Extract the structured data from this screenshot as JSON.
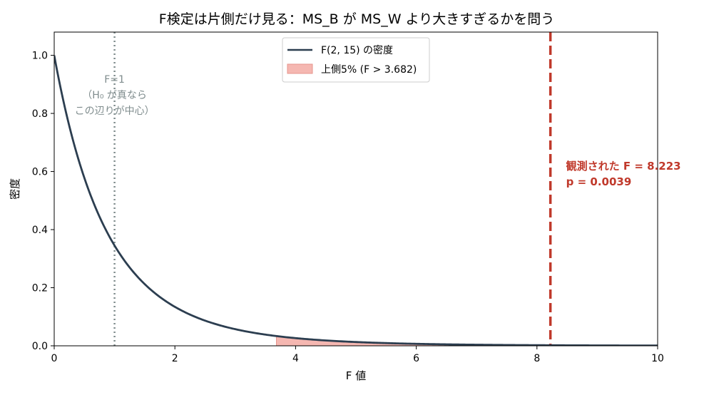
{
  "chart_data": {
    "type": "line",
    "title": "F検定は片側だけ見る：MS_B が MS_W より大きすぎるかを問う",
    "xlabel": "F 値",
    "ylabel": "密度",
    "xlim": [
      0,
      10
    ],
    "ylim": [
      0,
      1.08
    ],
    "x_ticks": [
      0,
      2,
      4,
      6,
      8,
      10
    ],
    "x_tick_labels": [
      "0",
      "2",
      "4",
      "6",
      "8",
      "10"
    ],
    "y_ticks": [
      0.0,
      0.2,
      0.4,
      0.6,
      0.8,
      1.0
    ],
    "y_tick_labels": [
      "0.0",
      "0.2",
      "0.4",
      "0.6",
      "0.8",
      "1.0"
    ],
    "grid": false,
    "legend_position": "top-center",
    "series": [
      {
        "name": "F(2, 15) の密度",
        "color": "#2c3e50",
        "x": [
          0,
          0.25,
          0.5,
          0.75,
          1,
          1.25,
          1.5,
          1.75,
          2,
          2.5,
          3,
          3.5,
          4,
          4.5,
          5,
          6,
          7,
          8,
          9,
          10
        ],
        "y": [
          1.0,
          0.773,
          0.602,
          0.472,
          0.372,
          0.296,
          0.236,
          0.19,
          0.154,
          0.102,
          0.068,
          0.047,
          0.033,
          0.023,
          0.016,
          0.0085,
          0.0047,
          0.0027,
          0.0016,
          0.001
        ]
      }
    ],
    "shaded_region": {
      "name": "上側5% (F > 3.682)",
      "from": 3.682,
      "to": 10,
      "color": "#f5b7b1",
      "edge_color": "#e6958d"
    },
    "reference_lines": [
      {
        "x": 1,
        "style": "dotted",
        "color": "#7f8c8d",
        "label_lines": [
          "F=1",
          "（H₀ が真なら",
          "この辺りが中心）"
        ]
      },
      {
        "x": 8.223,
        "style": "dashed",
        "color": "#c0392b",
        "label_lines": [
          "観測された F = 8.223",
          "p = 0.0039"
        ]
      }
    ]
  }
}
